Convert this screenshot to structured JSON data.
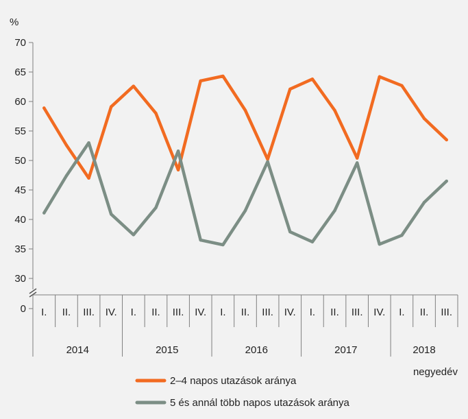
{
  "chart_data": {
    "type": "line",
    "yunit": "%",
    "xunit": "negyedév",
    "y_ticks": [
      "70",
      "65",
      "60",
      "55",
      "50",
      "45",
      "40",
      "35",
      "30",
      "0"
    ],
    "ylim": [
      30,
      70
    ],
    "axis_break": true,
    "grid": false,
    "legend_position": "bottom",
    "categories": [
      "2014 I.",
      "2014 II.",
      "2014 III.",
      "2014 IV.",
      "2015 I.",
      "2015 II.",
      "2015 III.",
      "2015 IV.",
      "2016 I.",
      "2016 II.",
      "2016 III.",
      "2016 IV.",
      "2017 I.",
      "2017 II.",
      "2017 III.",
      "2017 IV.",
      "2018 I.",
      "2018 II.",
      "2018 III."
    ],
    "quarter_labels": [
      "I.",
      "II.",
      "III.",
      "IV.",
      "I.",
      "II.",
      "III.",
      "IV.",
      "I.",
      "II.",
      "III.",
      "IV.",
      "I.",
      "II.",
      "III.",
      "IV.",
      "I.",
      "II.",
      "III."
    ],
    "years": [
      {
        "label": "2014",
        "quarters": 4
      },
      {
        "label": "2015",
        "quarters": 4
      },
      {
        "label": "2016",
        "quarters": 4
      },
      {
        "label": "2017",
        "quarters": 4
      },
      {
        "label": "2018",
        "quarters": 3
      }
    ],
    "series": [
      {
        "name": "2–4 napos utazások aránya",
        "color": "#f26b21",
        "values": [
          58.9,
          52.6,
          47.0,
          59.1,
          62.6,
          58.0,
          48.4,
          63.5,
          64.3,
          58.5,
          50.2,
          62.1,
          63.8,
          58.5,
          50.4,
          64.2,
          62.7,
          57.1,
          53.5
        ]
      },
      {
        "name": "5 és annál több napos utazások aránya",
        "color": "#7c8e85",
        "values": [
          41.1,
          47.4,
          53.0,
          40.9,
          37.4,
          42.0,
          51.6,
          36.5,
          35.7,
          41.5,
          49.8,
          37.9,
          36.2,
          41.5,
          49.6,
          35.8,
          37.3,
          42.9,
          46.5
        ]
      }
    ]
  }
}
